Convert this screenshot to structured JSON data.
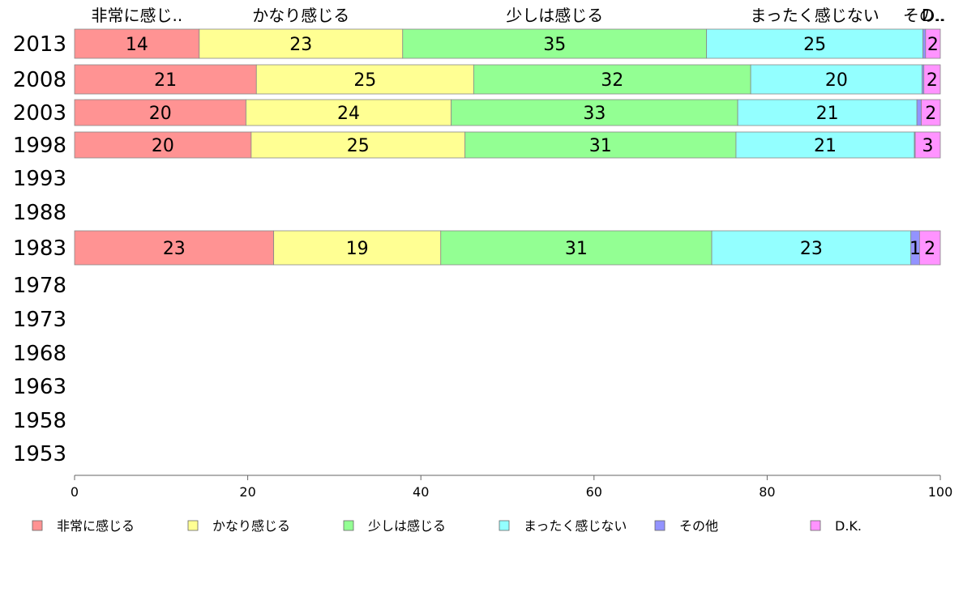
{
  "chart_data": {
    "type": "bar",
    "orientation": "horizontal",
    "stacked": true,
    "title": "",
    "xlabel": "",
    "ylabel": "",
    "xlim": [
      0,
      100
    ],
    "x_ticks": [
      "0",
      "20",
      "40",
      "60",
      "80",
      "100"
    ],
    "categories": [
      "2013",
      "2008",
      "2003",
      "1998",
      "1993",
      "1988",
      "1983",
      "1978",
      "1973",
      "1968",
      "1963",
      "1958",
      "1953"
    ],
    "top_labels": [
      "非常に感じ..",
      "かなり感じる",
      "少しは感じる",
      "まったく感じない",
      "その..",
      "D.."
    ],
    "series": [
      {
        "name": "非常に感じる",
        "color": "#ff9393",
        "values": [
          14.4,
          21.0,
          19.8,
          20.4,
          null,
          null,
          23.0,
          null,
          null,
          null,
          null,
          null,
          null
        ],
        "labels": [
          "14",
          "21",
          "20",
          "20",
          "",
          "",
          "23",
          "",
          "",
          "",
          "",
          "",
          ""
        ]
      },
      {
        "name": "かなり感じる",
        "color": "#ffff93",
        "values": [
          23.5,
          25.1,
          23.7,
          24.7,
          null,
          null,
          19.3,
          null,
          null,
          null,
          null,
          null,
          null
        ],
        "labels": [
          "23",
          "25",
          "24",
          "25",
          "",
          "",
          "19",
          "",
          "",
          "",
          "",
          "",
          ""
        ]
      },
      {
        "name": "少しは感じる",
        "color": "#93ff93",
        "values": [
          35.1,
          32.0,
          33.1,
          31.3,
          null,
          null,
          31.3,
          null,
          null,
          null,
          null,
          null,
          null
        ],
        "labels": [
          "35",
          "32",
          "33",
          "31",
          "",
          "",
          "31",
          "",
          "",
          "",
          "",
          "",
          ""
        ]
      },
      {
        "name": "まったく感じない",
        "color": "#93ffff",
        "values": [
          25.0,
          19.8,
          20.7,
          20.6,
          null,
          null,
          23.0,
          null,
          null,
          null,
          null,
          null,
          null
        ],
        "labels": [
          "25",
          "20",
          "21",
          "21",
          "",
          "",
          "23",
          "",
          "",
          "",
          "",
          "",
          ""
        ]
      },
      {
        "name": "その他",
        "color": "#9393ff",
        "values": [
          0.3,
          0.2,
          0.5,
          0.1,
          null,
          null,
          1.0,
          null,
          null,
          null,
          null,
          null,
          null
        ],
        "labels": [
          "",
          "",
          "",
          "",
          "",
          "",
          "1",
          "",
          "",
          "",
          "",
          "",
          ""
        ]
      },
      {
        "name": "D.K.",
        "color": "#ff93ff",
        "values": [
          1.7,
          1.9,
          2.2,
          2.9,
          null,
          null,
          2.4,
          null,
          null,
          null,
          null,
          null,
          null
        ],
        "labels": [
          "2",
          "2",
          "2",
          "3",
          "",
          "",
          "2",
          "",
          "",
          "",
          "",
          "",
          ""
        ]
      }
    ],
    "legend": [
      "非常に感じる",
      "かなり感じる",
      "少しは感じる",
      "まったく感じない",
      "その他",
      "D.K."
    ],
    "legend_position": "bottom",
    "grid": false
  }
}
